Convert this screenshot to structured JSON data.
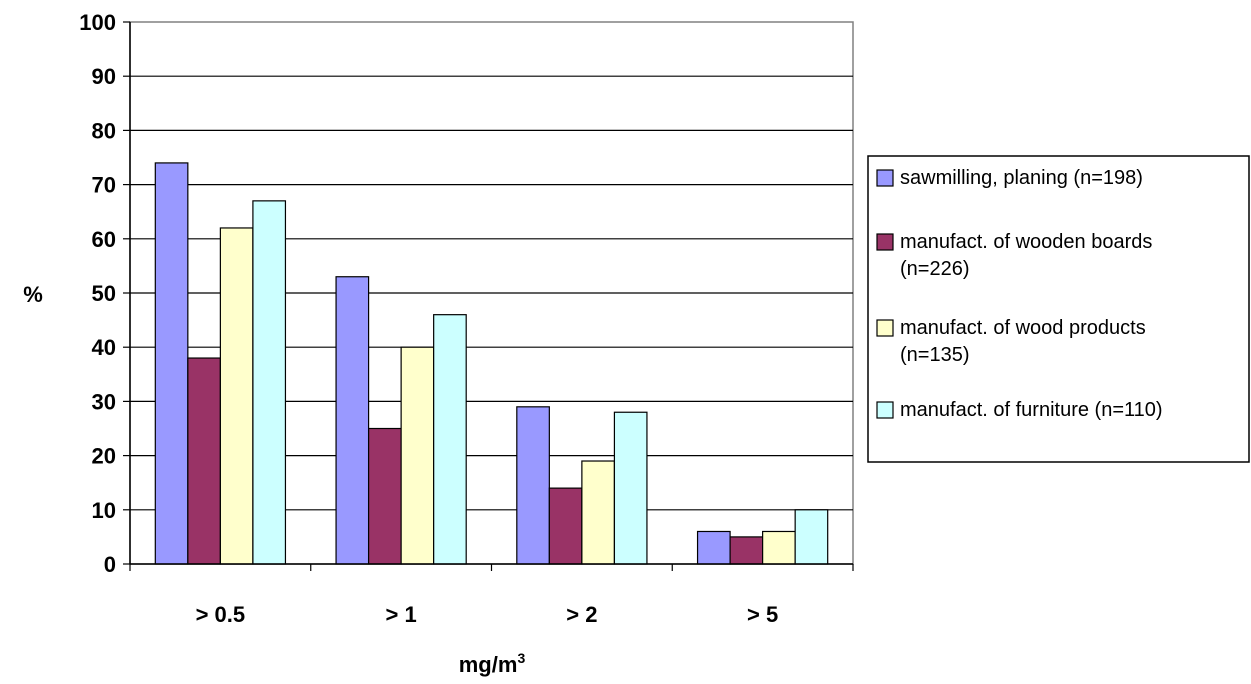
{
  "chart_data": {
    "type": "bar",
    "categories": [
      "> 0.5",
      "> 1",
      "> 2",
      "> 5"
    ],
    "series": [
      {
        "name": "sawmilling, planing (n=198)",
        "values": [
          74,
          53,
          29,
          6
        ],
        "color": "#9999ff"
      },
      {
        "name": "manufact. of wooden boards (n=226)",
        "values": [
          38,
          25,
          14,
          5
        ],
        "color": "#993366"
      },
      {
        "name": "manufact. of wood products (n=135)",
        "values": [
          62,
          40,
          19,
          6
        ],
        "color": "#ffffcc"
      },
      {
        "name": "manufact. of furniture (n=110)",
        "values": [
          67,
          46,
          28,
          10
        ],
        "color": "#ccffff"
      }
    ],
    "legend": [
      [
        "sawmilling, planing (n=198)"
      ],
      [
        "manufact. of wooden boards",
        "(n=226)"
      ],
      [
        "manufact. of wood products",
        "(n=135)"
      ],
      [
        "manufact. of furniture (n=110)"
      ]
    ],
    "ylabel": "%",
    "xlabel": "mg/m",
    "xlabel_superscript": "3",
    "ylim": [
      0,
      100
    ],
    "yticks": [
      "0",
      "10",
      "20",
      "30",
      "40",
      "50",
      "60",
      "70",
      "80",
      "90",
      "100"
    ],
    "ytick_values": [
      0,
      10,
      20,
      30,
      40,
      50,
      60,
      70,
      80,
      90,
      100
    ],
    "grid": true,
    "legend_position": "right"
  }
}
